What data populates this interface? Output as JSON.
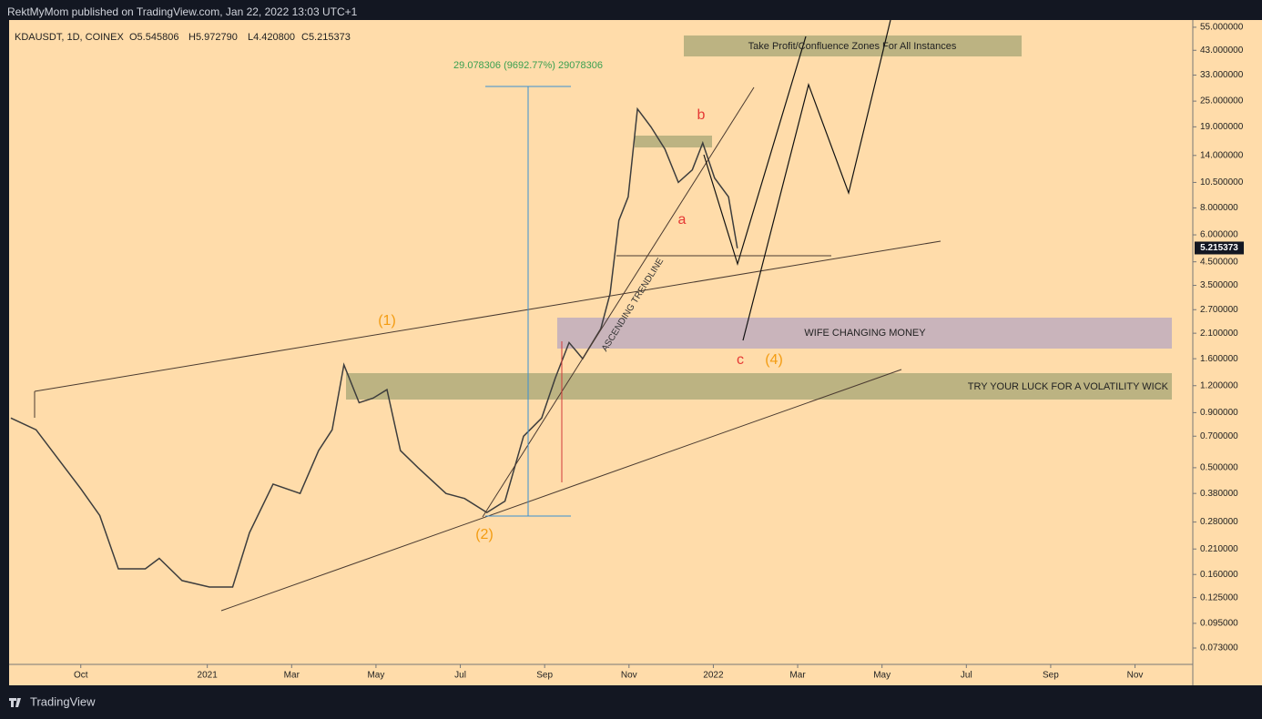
{
  "header": "RektMyMom published on TradingView.com, Jan 22, 2022 13:03 UTC+1",
  "footer": "TradingView",
  "chart_data": {
    "type": "line",
    "symbol": "KDAUSDT, 1D, COINEX",
    "ohlc": [
      "O5.545806",
      "H5.972790",
      "L4.420800",
      "C5.215373"
    ],
    "x": [
      -1.66,
      -1.06,
      -0.63,
      0,
      0.45,
      0.89,
      1.53,
      1.86,
      2.4,
      3.05,
      3.6,
      4.0,
      4.56,
      5.2,
      5.64,
      5.96,
      6.24,
      6.6,
      6.93,
      7.26,
      7.58,
      8.0,
      8.66,
      9.1,
      9.63,
      10.06,
      10.5,
      10.93,
      11.25,
      11.58,
      11.9,
      12.33,
      12.55,
      12.76,
      12.98,
      13.2,
      13.52,
      13.85,
      14.17,
      14.5,
      14.75,
      15.03,
      15.36,
      15.57
    ],
    "series": [
      {
        "name": "KDAUSDT",
        "color": "#3d3d3d",
        "values": [
          0.85,
          0.75,
          0.58,
          0.4,
          0.3,
          0.17,
          0.17,
          0.19,
          0.15,
          0.14,
          0.14,
          0.25,
          0.42,
          0.38,
          0.6,
          0.75,
          1.5,
          1.0,
          1.05,
          1.15,
          0.6,
          0.5,
          0.38,
          0.36,
          0.31,
          0.35,
          0.7,
          0.85,
          1.3,
          1.9,
          1.6,
          2.2,
          3.2,
          7.0,
          9.0,
          23,
          19,
          15,
          10.5,
          12,
          16,
          11,
          9,
          5.2
        ]
      }
    ],
    "last_price": 5.215373,
    "log_scale": true,
    "xlim": [
      -1.7,
      26.37
    ],
    "xticks": [
      {
        "value": 0,
        "label": "Oct"
      },
      {
        "value": 3,
        "label": "2021"
      },
      {
        "value": 5,
        "label": "Mar"
      },
      {
        "value": 7,
        "label": "May"
      },
      {
        "value": 9,
        "label": "Jul"
      },
      {
        "value": 11,
        "label": "Sep"
      },
      {
        "value": 13,
        "label": "Nov"
      },
      {
        "value": 15,
        "label": "2022"
      },
      {
        "value": 17,
        "label": "Mar"
      },
      {
        "value": 19,
        "label": "May"
      },
      {
        "value": 21,
        "label": "Jul"
      },
      {
        "value": 23,
        "label": "Sep"
      },
      {
        "value": 25,
        "label": "Nov"
      }
    ],
    "ylim": [
      0.0613,
      59.4
    ],
    "yticks": [
      {
        "value": 55,
        "label": "55.000000"
      },
      {
        "value": 43,
        "label": "43.000000"
      },
      {
        "value": 33,
        "label": "33.000000"
      },
      {
        "value": 25,
        "label": "25.000000"
      },
      {
        "value": 19,
        "label": "19.000000"
      },
      {
        "value": 14,
        "label": "14.000000"
      },
      {
        "value": 10.5,
        "label": "10.500000"
      },
      {
        "value": 8,
        "label": "8.000000"
      },
      {
        "value": 6,
        "label": "6.000000"
      },
      {
        "value": 4.5,
        "label": "4.500000"
      },
      {
        "value": 3.5,
        "label": "3.500000"
      },
      {
        "value": 2.7,
        "label": "2.700000"
      },
      {
        "value": 2.1,
        "label": "2.100000"
      },
      {
        "value": 1.6,
        "label": "1.600000"
      },
      {
        "value": 1.2,
        "label": "1.200000"
      },
      {
        "value": 0.9,
        "label": "0.900000"
      },
      {
        "value": 0.7,
        "label": "0.700000"
      },
      {
        "value": 0.5,
        "label": "0.500000"
      },
      {
        "value": 0.38,
        "label": "0.380000"
      },
      {
        "value": 0.28,
        "label": "0.280000"
      },
      {
        "value": 0.21,
        "label": "0.210000"
      },
      {
        "value": 0.16,
        "label": "0.160000"
      },
      {
        "value": 0.125,
        "label": "0.125000"
      },
      {
        "value": 0.095,
        "label": "0.095000"
      },
      {
        "value": 0.073,
        "label": "0.073000"
      }
    ],
    "grid": false,
    "annotations": [
      "29.078306 (9692.77%) 29078306",
      "Take Profit/Confluence Zones For All Instances",
      "WIFE CHANGING MONEY",
      "TRY YOUR LUCK FOR A VOLATILITY WICK",
      "ASCENDING TRENDLINE",
      "(1)",
      "(2)",
      "(4)",
      "a",
      "b",
      "c"
    ]
  }
}
